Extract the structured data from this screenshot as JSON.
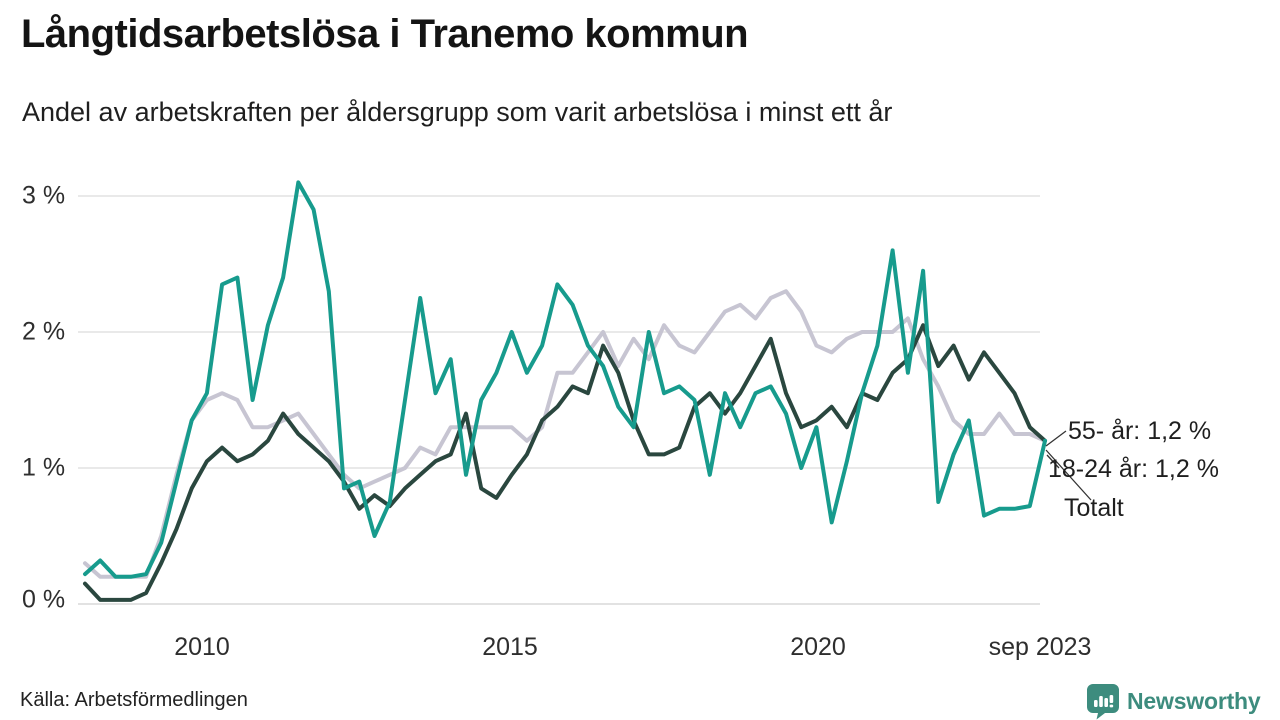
{
  "header": {
    "title": "Långtidsarbetslösa i Tranemo kommun",
    "subtitle": "Andel av arbetskraften per åldersgrupp som varit arbetslösa i minst ett år"
  },
  "chart_data": {
    "type": "line",
    "x_start": "jan 2008",
    "x_end": "sep 2023",
    "x_step": "quarterly",
    "x_ticks": [
      "2010",
      "2015",
      "2020",
      "sep 2023"
    ],
    "y_ticks": [
      "3 %",
      "2 %",
      "1 %",
      "0 %"
    ],
    "y_unit": "%",
    "ylim": [
      0,
      3.2
    ],
    "grid": "horizontal",
    "legend_position": "end-of-line-labels",
    "series": [
      {
        "id": "55",
        "name": "55- år",
        "end_label": "55- år: 1,2 %",
        "end_value": "1,2 %",
        "color": "#c7c5d2",
        "values": [
          0.3,
          0.2,
          0.2,
          0.2,
          0.2,
          0.5,
          0.95,
          1.35,
          1.5,
          1.55,
          1.5,
          1.3,
          1.3,
          1.35,
          1.4,
          1.25,
          1.1,
          0.95,
          0.85,
          0.9,
          0.95,
          1.0,
          1.15,
          1.1,
          1.3,
          1.3,
          1.3,
          1.3,
          1.3,
          1.2,
          1.3,
          1.7,
          1.7,
          1.85,
          2.0,
          1.75,
          1.95,
          1.8,
          2.05,
          1.9,
          1.85,
          2.0,
          2.15,
          2.2,
          2.1,
          2.25,
          2.3,
          2.15,
          1.9,
          1.85,
          1.95,
          2.0,
          2.0,
          2.0,
          2.1,
          1.8,
          1.6,
          1.35,
          1.25,
          1.25,
          1.4,
          1.25,
          1.25,
          1.2
        ]
      },
      {
        "id": "totalt",
        "name": "Totalt",
        "end_label": "Totalt",
        "end_value": "1,2 %",
        "color": "#2a473f",
        "values": [
          0.15,
          0.03,
          0.03,
          0.03,
          0.08,
          0.3,
          0.55,
          0.85,
          1.05,
          1.15,
          1.05,
          1.1,
          1.2,
          1.4,
          1.25,
          1.15,
          1.05,
          0.9,
          0.7,
          0.8,
          0.72,
          0.85,
          0.95,
          1.05,
          1.1,
          1.4,
          0.85,
          0.78,
          0.95,
          1.1,
          1.35,
          1.45,
          1.6,
          1.55,
          1.9,
          1.7,
          1.35,
          1.1,
          1.1,
          1.15,
          1.45,
          1.55,
          1.4,
          1.55,
          1.75,
          1.95,
          1.55,
          1.3,
          1.35,
          1.45,
          1.3,
          1.55,
          1.5,
          1.7,
          1.8,
          2.05,
          1.75,
          1.9,
          1.65,
          1.85,
          1.7,
          1.55,
          1.3,
          1.2
        ]
      },
      {
        "id": "18-24",
        "name": "18-24 år",
        "end_label": "18-24 år: 1,2 %",
        "end_value": "1,2 %",
        "color": "#179b8d",
        "values": [
          0.22,
          0.32,
          0.2,
          0.2,
          0.22,
          0.45,
          0.9,
          1.35,
          1.55,
          2.35,
          2.4,
          1.5,
          2.05,
          2.4,
          3.1,
          2.9,
          2.3,
          0.85,
          0.9,
          0.5,
          0.75,
          1.5,
          2.25,
          1.55,
          1.8,
          0.95,
          1.5,
          1.7,
          2.0,
          1.7,
          1.9,
          2.35,
          2.2,
          1.9,
          1.75,
          1.45,
          1.3,
          2.0,
          1.55,
          1.6,
          1.5,
          0.95,
          1.55,
          1.3,
          1.55,
          1.6,
          1.4,
          1.0,
          1.3,
          0.6,
          1.05,
          1.55,
          1.9,
          2.6,
          1.7,
          2.45,
          0.75,
          1.1,
          1.35,
          0.65,
          0.7,
          0.7,
          0.72,
          1.2
        ]
      }
    ]
  },
  "annotations": {
    "label_55": "55- år: 1,2 %",
    "label_1824": "18-24 år: 1,2 %",
    "label_totalt": "Totalt"
  },
  "footer": {
    "source": "Källa: Arbetsförmedlingen",
    "brand": "Newsworthy"
  },
  "colors": {
    "teal": "#179b8d",
    "dark_green": "#2a473f",
    "light_gray": "#c7c5d2",
    "gridline": "#e2e2e2",
    "brand_teal": "#3d8c7e",
    "leader_line": "#333333"
  }
}
